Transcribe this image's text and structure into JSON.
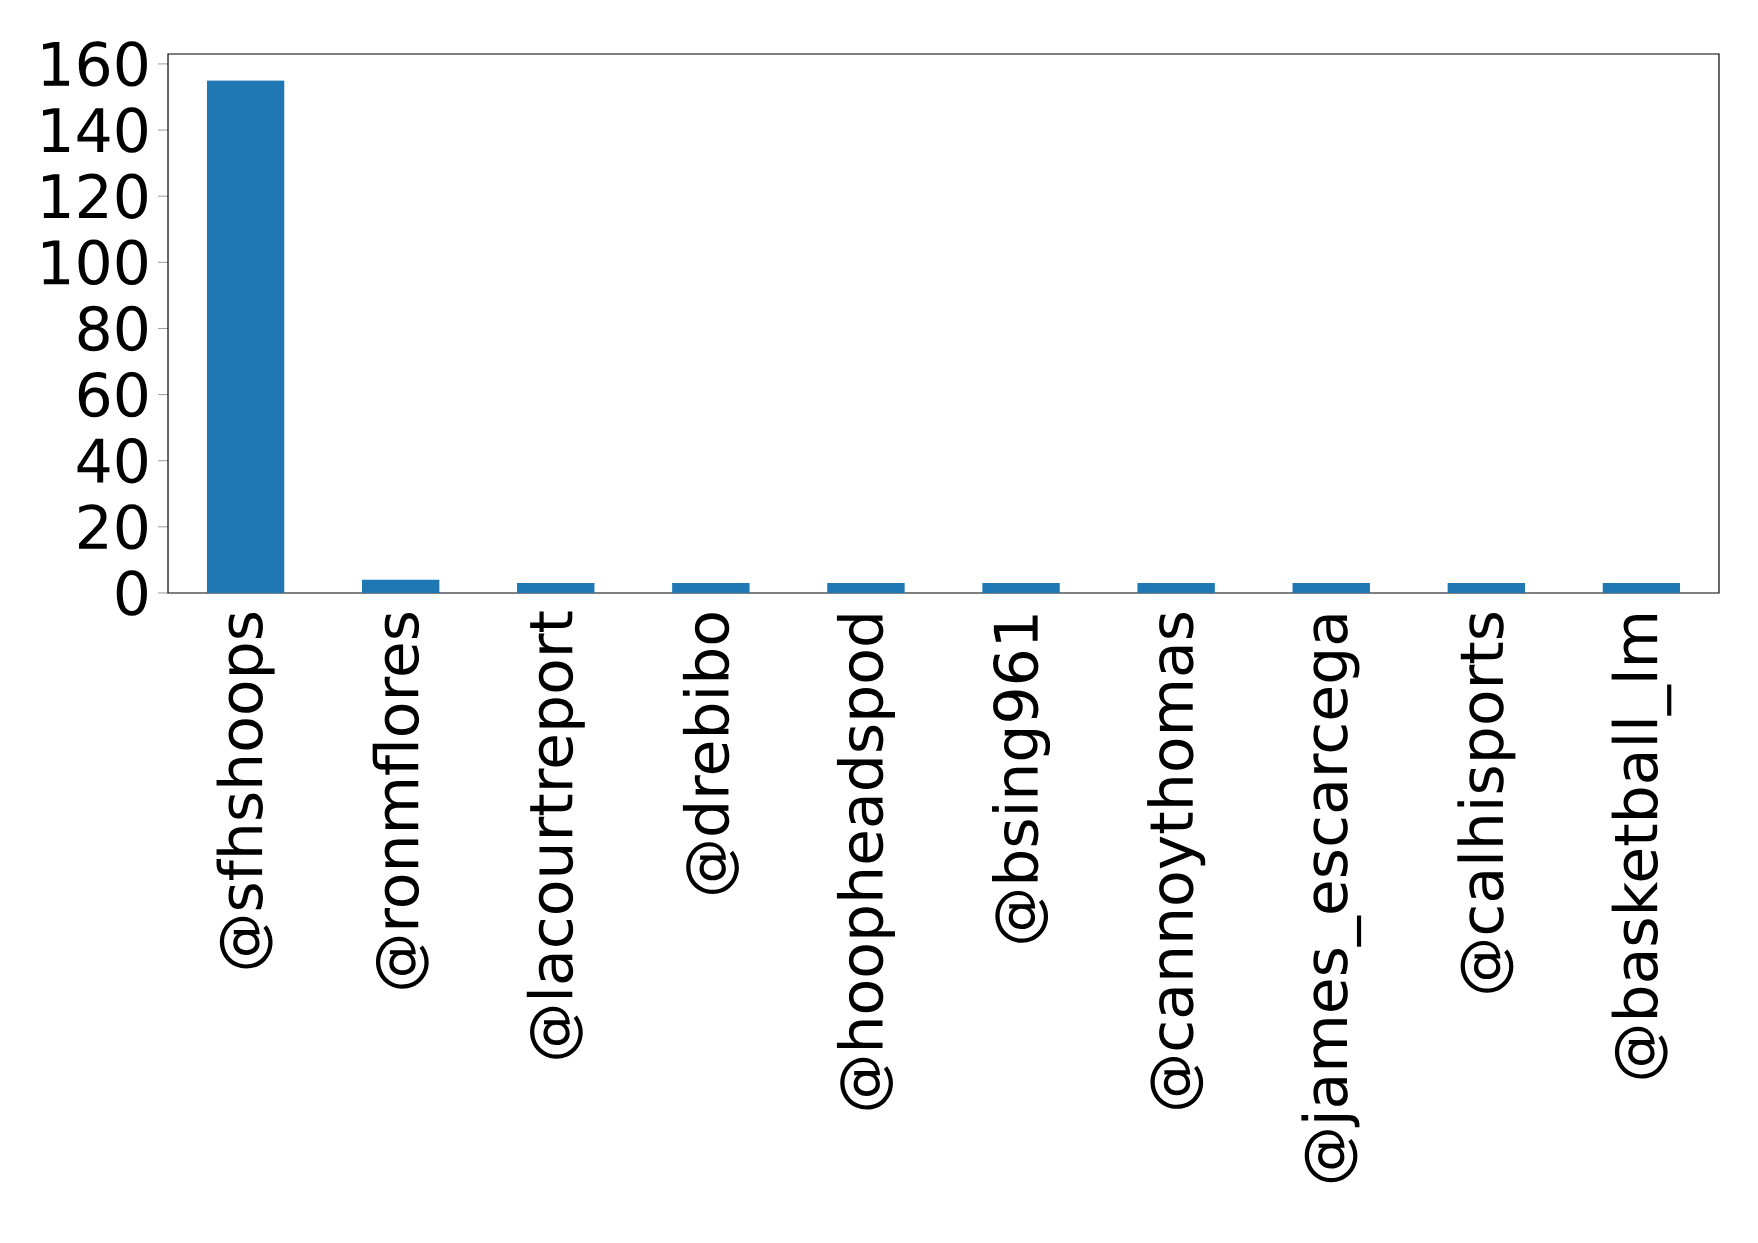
{
  "chart_data": {
    "type": "bar",
    "categories": [
      "@sfhshoops",
      "@ronmflores",
      "@lacourtreport",
      "@drebibo",
      "@hoopheadspod",
      "@bsing961",
      "@cannoythomas",
      "@james_escarcega",
      "@calhisports",
      "@basketball_lm"
    ],
    "values": [
      155,
      4,
      3,
      3,
      3,
      3,
      3,
      3,
      3,
      3
    ],
    "color": "#1f77b4",
    "ylim": [
      0,
      163
    ],
    "yticks": [
      0,
      20,
      40,
      60,
      80,
      100,
      120,
      140,
      160
    ],
    "grid": false
  }
}
